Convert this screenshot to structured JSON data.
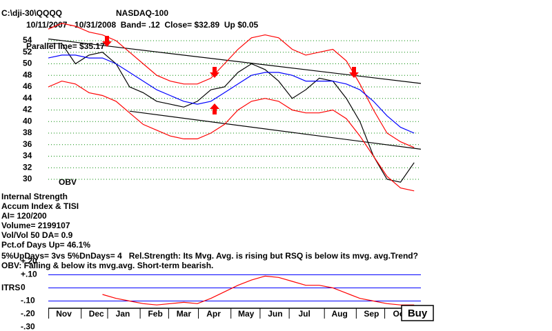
{
  "file": "C:\\dji-30\\QQQQ",
  "button": "Buy",
  "indicator_text": [
    "Internal Strength",
    "Accum Index & TISI",
    "AI= 120/200",
    "Volume= 2199107",
    "Vol/Vol 50 DA= 0.9",
    "Pct.of Days Up= 46.1%",
    "5%UpDays= 3vs 5%DnDays= 4   Rel.Strength: Its Mvg. Avg. is rising but RSQ is below its mvg. avg.Trend?",
    "OBV: Falling & below its mvg.avg. Short-term bearish."
  ],
  "chart_data": [
    {
      "type": "line",
      "title": "NASDAQ-100",
      "subtitle": "10/11/2007 - 10/31/2008  Band= .12  Close= $32.89  Up $0.05",
      "annotations": [
        "Parallel line= $35.17",
        "OBV"
      ],
      "x": [
        0,
        2,
        4,
        6,
        8,
        10,
        12,
        14,
        16,
        18,
        20,
        22,
        24,
        26,
        28,
        30,
        32,
        34,
        36,
        38,
        40,
        42,
        44,
        46,
        48,
        50,
        52,
        54
      ],
      "xlim": [
        0,
        55
      ],
      "ylim": [
        28,
        55
      ],
      "yticks": [
        30,
        32,
        34,
        36,
        38,
        40,
        42,
        44,
        46,
        48,
        50,
        52,
        54
      ],
      "grid": true,
      "series": [
        {
          "color": "#000000",
          "values": [
            53.5,
            53.5,
            50,
            51.5,
            52,
            50,
            46,
            45,
            43.5,
            43,
            42.5,
            43.5,
            45.5,
            46,
            48.5,
            50,
            49,
            47,
            44,
            45.5,
            47.5,
            47,
            44,
            40,
            34,
            30,
            29.5,
            32.89
          ]
        },
        {
          "color": "#ff0000",
          "values": [
            56,
            57,
            56.5,
            55.5,
            55,
            54,
            52,
            50,
            48,
            47,
            46.5,
            46.5,
            47.5,
            50,
            52.5,
            54.5,
            55,
            54.5,
            52.5,
            51.5,
            52,
            52.5,
            50.5,
            46.5,
            42,
            38,
            36.5,
            35.5
          ]
        },
        {
          "color": "#ff0000",
          "values": [
            46,
            47,
            46.5,
            45,
            44.5,
            43.5,
            41.5,
            39.5,
            38.5,
            37.5,
            37,
            37,
            38,
            39.5,
            42,
            43.5,
            44,
            43.5,
            42,
            41.5,
            41.5,
            42,
            40.5,
            37.5,
            34,
            30.5,
            28.5,
            28
          ]
        },
        {
          "color": "#0000ff",
          "values": [
            51,
            51.5,
            51.5,
            51,
            51,
            50,
            48.5,
            47,
            45.5,
            44.5,
            43.5,
            43,
            43.5,
            45,
            46.5,
            48,
            48.5,
            48.5,
            48,
            47,
            47,
            47,
            46.5,
            45.5,
            43.5,
            41,
            39,
            38
          ]
        }
      ],
      "trendlines": [
        {
          "color": "#000000",
          "x": [
            0,
            55
          ],
          "values": [
            54.3,
            46.6
          ]
        },
        {
          "color": "#000000",
          "x": [
            12,
            55
          ],
          "values": [
            41.8,
            35.2
          ]
        }
      ]
    },
    {
      "type": "line",
      "ylabel": "ITRS",
      "x": [
        0,
        2,
        4,
        6,
        8,
        10,
        12,
        14,
        16,
        18,
        20,
        22,
        24,
        26,
        28,
        30,
        32,
        34,
        36,
        38,
        40,
        42,
        44,
        46,
        48,
        50,
        52,
        54
      ],
      "xlim": [
        0,
        55
      ],
      "xticks": [
        {
          "value": 2.3,
          "label": "Nov"
        },
        {
          "value": 7.1,
          "label": "Dec"
        },
        {
          "value": 11,
          "label": "Jan"
        },
        {
          "value": 15.8,
          "label": "Feb"
        },
        {
          "value": 20,
          "label": "Mar"
        },
        {
          "value": 24.4,
          "label": "Apr"
        },
        {
          "value": 29.2,
          "label": "May"
        },
        {
          "value": 33.5,
          "label": "Jun"
        },
        {
          "value": 37.8,
          "label": "Jul"
        },
        {
          "value": 43,
          "label": "Aug"
        },
        {
          "value": 47.7,
          "label": "Sep"
        },
        {
          "value": 51.9,
          "label": "Oct"
        }
      ],
      "ylim": [
        -0.3,
        0.2
      ],
      "yticks": [
        {
          "value": 0.2,
          "label": "+.20"
        },
        {
          "value": 0.1,
          "label": "+.10"
        },
        0,
        {
          "value": -0.1,
          "label": "-.10"
        },
        {
          "value": -0.2,
          "label": "-.20"
        },
        {
          "value": -0.3,
          "label": "-.30"
        }
      ],
      "series": [
        {
          "color": "#ff0000",
          "values": [
            null,
            null,
            null,
            null,
            -0.05,
            -0.08,
            -0.1,
            -0.12,
            -0.13,
            -0.12,
            -0.11,
            -0.12,
            -0.08,
            -0.03,
            0.02,
            0.06,
            0.09,
            0.08,
            0.05,
            0.02,
            0.02,
            0,
            -0.04,
            -0.08,
            -0.1,
            -0.12,
            -0.13,
            -0.13
          ]
        }
      ]
    }
  ]
}
